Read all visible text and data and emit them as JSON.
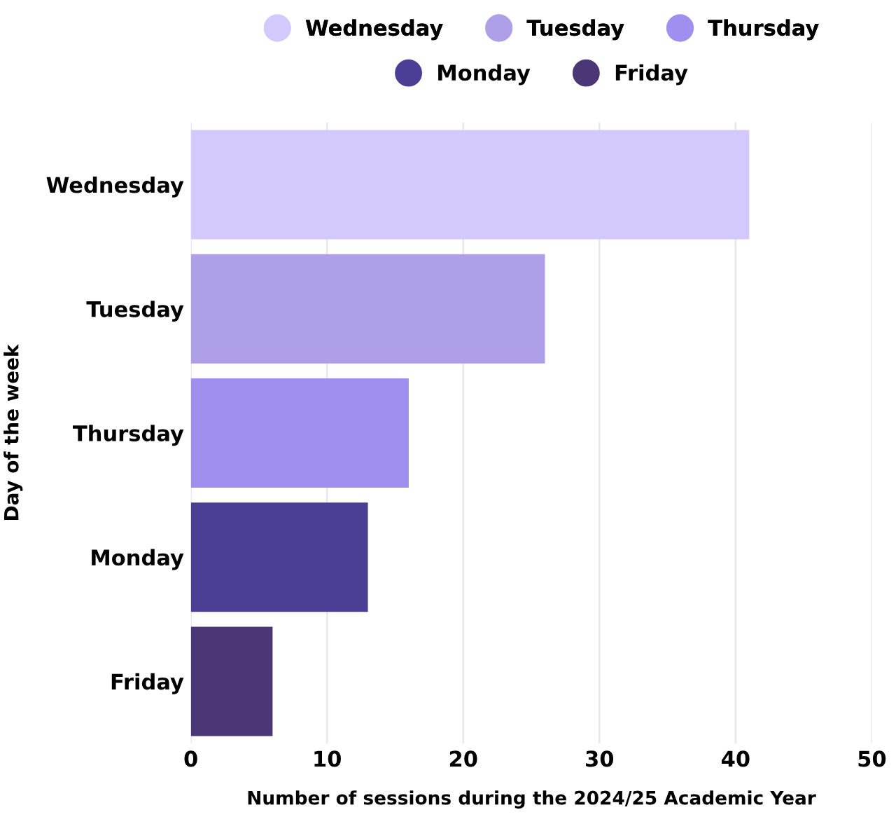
{
  "chart_data": {
    "type": "bar",
    "orientation": "horizontal",
    "xlabel": "Number of sessions during the 2024/25 Academic Year",
    "ylabel": "Day of the week",
    "categories": [
      "Wednesday",
      "Tuesday",
      "Thursday",
      "Monday",
      "Friday"
    ],
    "series": [
      {
        "name": "Wednesday",
        "color": "#d3c9fd",
        "values": [
          41,
          null,
          null,
          null,
          null
        ]
      },
      {
        "name": "Tuesday",
        "color": "#ae9fe8",
        "values": [
          null,
          26,
          null,
          null,
          null
        ]
      },
      {
        "name": "Thursday",
        "color": "#a08fee",
        "values": [
          null,
          null,
          16,
          null,
          null
        ]
      },
      {
        "name": "Monday",
        "color": "#4a3f94",
        "values": [
          null,
          null,
          null,
          13,
          null
        ]
      },
      {
        "name": "Friday",
        "color": "#4b3776",
        "values": [
          null,
          null,
          null,
          null,
          6
        ]
      }
    ],
    "xlim": [
      0,
      50
    ],
    "xticks": [
      0,
      10,
      20,
      30,
      40,
      50
    ],
    "grid": "x",
    "legend": "top"
  }
}
